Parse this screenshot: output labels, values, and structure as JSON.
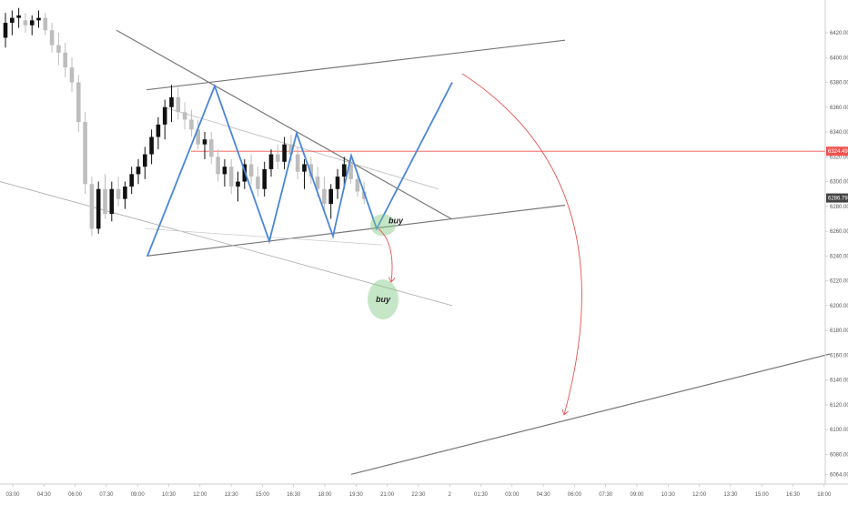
{
  "chart_data": {
    "type": "candlestick",
    "ylim": [
      6062,
      6442
    ],
    "grid": false,
    "x_ticks": [
      "03:00",
      "04:30",
      "06:00",
      "07:30",
      "09:00",
      "10:30",
      "12:00",
      "13:30",
      "15:00",
      "16:30",
      "18:00",
      "19:30",
      "21:00",
      "22:30",
      "2",
      "01:30",
      "03:00",
      "04:30",
      "06:00",
      "07:30",
      "09:00",
      "10:30",
      "12:00",
      "13:30",
      "15:00",
      "16:30",
      "18:00"
    ],
    "y_ticks": [
      6420.0,
      6400.0,
      6380.0,
      6360.0,
      6340.0,
      6320.0,
      6300.0,
      6280.0,
      6260.0,
      6240.0,
      6220.0,
      6200.0,
      6180.0,
      6160.0,
      6140.0,
      6120.0,
      6100.0,
      6080.0,
      6064.0
    ],
    "price_tags": [
      {
        "label": "6324.49",
        "value": 6324.49,
        "color": "#ef5350"
      },
      {
        "label": "6286.79",
        "value": 6286.79,
        "color": "#444444"
      }
    ],
    "candles": [
      [
        6416,
        6436,
        6408,
        6428
      ],
      [
        6428,
        6438,
        6418,
        6432
      ],
      [
        6432,
        6440,
        6424,
        6434
      ],
      [
        6430,
        6436,
        6420,
        6426
      ],
      [
        6426,
        6434,
        6418,
        6430
      ],
      [
        6430,
        6438,
        6424,
        6432
      ],
      [
        6432,
        6436,
        6418,
        6422
      ],
      [
        6422,
        6428,
        6404,
        6410
      ],
      [
        6410,
        6420,
        6394,
        6404
      ],
      [
        6404,
        6412,
        6384,
        6392
      ],
      [
        6392,
        6400,
        6372,
        6380
      ],
      [
        6380,
        6386,
        6340,
        6348
      ],
      [
        6348,
        6356,
        6290,
        6298
      ],
      [
        6298,
        6304,
        6256,
        6262
      ],
      [
        6262,
        6300,
        6258,
        6294
      ],
      [
        6294,
        6306,
        6270,
        6274
      ],
      [
        6274,
        6300,
        6268,
        6294
      ],
      [
        6294,
        6304,
        6280,
        6286
      ],
      [
        6286,
        6300,
        6278,
        6296
      ],
      [
        6296,
        6312,
        6290,
        6306
      ],
      [
        6306,
        6318,
        6298,
        6312
      ],
      [
        6312,
        6328,
        6302,
        6322
      ],
      [
        6322,
        6342,
        6314,
        6336
      ],
      [
        6336,
        6352,
        6326,
        6346
      ],
      [
        6346,
        6366,
        6334,
        6360
      ],
      [
        6360,
        6378,
        6348,
        6368
      ],
      [
        6368,
        6376,
        6350,
        6356
      ],
      [
        6356,
        6364,
        6342,
        6350
      ],
      [
        6350,
        6358,
        6336,
        6342
      ],
      [
        6342,
        6350,
        6326,
        6330
      ],
      [
        6330,
        6340,
        6318,
        6334
      ],
      [
        6334,
        6340,
        6314,
        6320
      ],
      [
        6320,
        6326,
        6300,
        6306
      ],
      [
        6306,
        6318,
        6296,
        6312
      ],
      [
        6312,
        6318,
        6290,
        6296
      ],
      [
        6296,
        6308,
        6284,
        6300
      ],
      [
        6300,
        6318,
        6294,
        6314
      ],
      [
        6314,
        6322,
        6298,
        6304
      ],
      [
        6304,
        6312,
        6288,
        6294
      ],
      [
        6294,
        6316,
        6288,
        6310
      ],
      [
        6310,
        6326,
        6304,
        6322
      ],
      [
        6322,
        6330,
        6310,
        6316
      ],
      [
        6316,
        6336,
        6310,
        6330
      ],
      [
        6330,
        6338,
        6316,
        6322
      ],
      [
        6322,
        6328,
        6302,
        6308
      ],
      [
        6308,
        6318,
        6294,
        6314
      ],
      [
        6314,
        6320,
        6298,
        6304
      ],
      [
        6304,
        6312,
        6288,
        6294
      ],
      [
        6294,
        6304,
        6276,
        6282
      ],
      [
        6282,
        6298,
        6270,
        6294
      ],
      [
        6294,
        6310,
        6286,
        6304
      ],
      [
        6304,
        6320,
        6294,
        6314
      ],
      [
        6314,
        6320,
        6298,
        6302
      ],
      [
        6302,
        6308,
        6288,
        6292
      ],
      [
        6292,
        6300,
        6282,
        6286
      ]
    ],
    "candle_x_start": 6,
    "candle_spacing": 7.3,
    "channel_lines": [
      {
        "points": [
          [
            161,
            6374
          ],
          [
            621,
            6414
          ]
        ],
        "color": "#777777",
        "width": 1.2
      },
      {
        "points": [
          [
            161,
            6240
          ],
          [
            621,
            6281
          ]
        ],
        "color": "#777777",
        "width": 1.2
      },
      {
        "points": [
          [
            128,
            6422
          ],
          [
            496,
            6270
          ]
        ],
        "color": "#777777",
        "width": 1.2
      },
      {
        "points": [
          [
            0,
            6300
          ],
          [
            497,
            6200
          ]
        ],
        "color": "#aaaaaa",
        "width": 0.8
      },
      {
        "points": [
          [
            180,
            6360
          ],
          [
            482,
            6294
          ]
        ],
        "color": "#bbbbbb",
        "width": 0.8
      },
      {
        "points": [
          [
            160,
            6262
          ],
          [
            420,
            6249
          ]
        ],
        "color": "#cccccc",
        "width": 0.8
      },
      {
        "points": [
          [
            386,
            6064
          ],
          [
            912,
            6161
          ]
        ],
        "color": "#777777",
        "width": 1.2
      }
    ],
    "zigzag": [
      [
        162,
        6240
      ],
      [
        236,
        6377
      ],
      [
        296,
        6252
      ],
      [
        326,
        6339
      ],
      [
        366,
        6256
      ],
      [
        386,
        6321
      ],
      [
        414,
        6262
      ],
      [
        497,
        6380
      ]
    ],
    "zigzag_color": "#4a86d8",
    "red_line": {
      "value": 6324.49,
      "x_start": 210
    },
    "arrows": [
      {
        "path": [
          [
            416,
            6262
          ],
          [
            435,
            6250
          ],
          [
            430,
            6219
          ]
        ],
        "color": "#e55353"
      },
      {
        "path": [
          [
            508,
            6387
          ],
          [
            690,
            6300
          ],
          [
            620,
            6112
          ]
        ],
        "color": "#e55353"
      }
    ],
    "ellipses": [
      {
        "cx": 421,
        "cy": 6265,
        "rx": 14,
        "ry": 12,
        "label": "buy"
      },
      {
        "cx": 421,
        "cy": 6205,
        "rx": 17,
        "ry": 22,
        "label": "buy"
      }
    ]
  }
}
